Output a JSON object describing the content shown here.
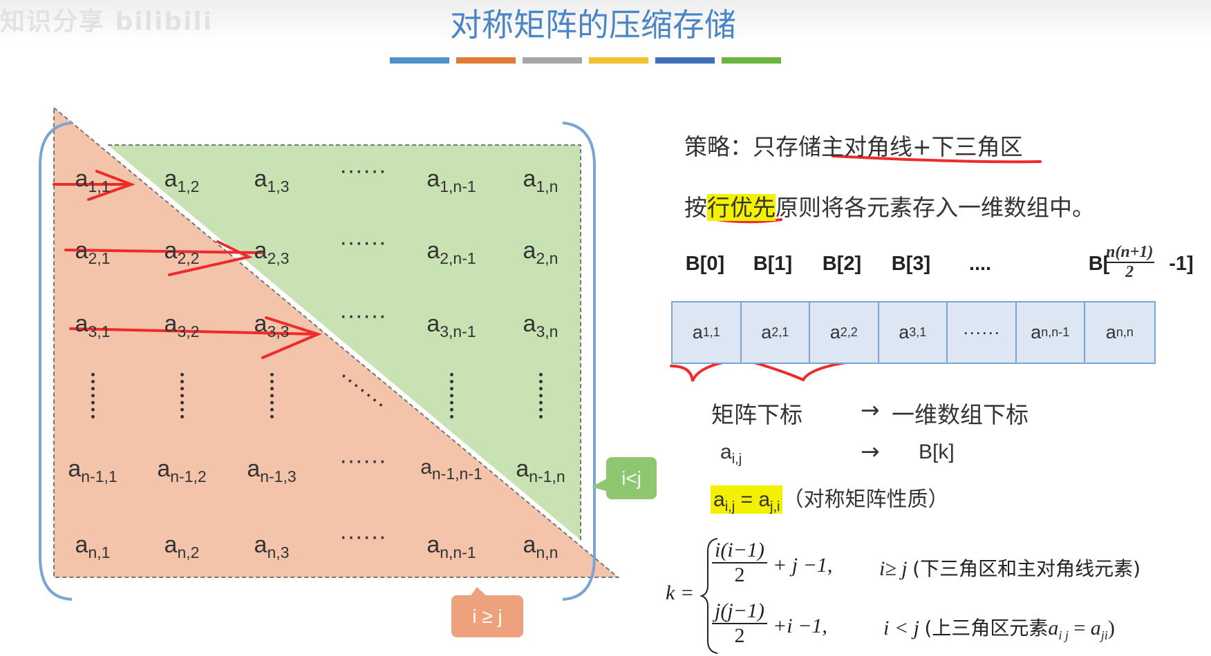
{
  "watermark": "知识分享 bilibili",
  "title": "对称矩阵的压缩存储",
  "colors": {
    "title": "#4a86c6",
    "upper": "#c9e2b3",
    "lower": "#f3c3aa",
    "bars": [
      "#4e90c8",
      "#e07a32",
      "#a5a5a5",
      "#f2c12e",
      "#3f6fb8",
      "#6cb33f"
    ],
    "annotation": "#ee2a2a",
    "highlight": "#f3f000",
    "bubble_upper": "#8fc770",
    "bubble_lower": "#eea27b"
  },
  "matrix": {
    "rows": [
      [
        "a|1,1",
        "a|1,2",
        "a|1,3",
        "······",
        "a|1,n-1",
        "a|1,n"
      ],
      [
        "a|2,1",
        "a|2,2",
        "a|2,3",
        "······",
        "a|2,n-1",
        "a|2,n"
      ],
      [
        "a|3,1",
        "a|3,2",
        "a|3,3",
        "······",
        "a|3,n-1",
        "a|3,n"
      ],
      [
        "vdots",
        "vdots",
        "vdots",
        "ddots",
        "vdots",
        "vdots"
      ],
      [
        "a|n-1,1",
        "a|n-1,2",
        "a|n-1,3",
        "······",
        "a|n-1,n-1",
        "a|n-1,n"
      ],
      [
        "a|n,1",
        "a|n,2",
        "a|n,3",
        "······",
        "a|n,n-1",
        "a|n,n"
      ]
    ]
  },
  "bubbles": {
    "upper": "i<j",
    "lower": "i ≥ j"
  },
  "strategy": {
    "prefix": "策略：只存储",
    "rest": "主对角线+下三角区"
  },
  "order": {
    "pre": "按",
    "highlight": "行优先",
    "post": "原则将各元素存入一维数组中。"
  },
  "array": {
    "labels": [
      "B[0]",
      "B[1]",
      "B[2]",
      "B[3]",
      "....",
      "B["
    ],
    "last_label": {
      "num": "n(n+1)",
      "den": "2",
      "suffix": "-1]"
    },
    "cells": [
      [
        "a",
        "1,1"
      ],
      [
        "a",
        "2,1"
      ],
      [
        "a",
        "2,2"
      ],
      [
        "a",
        "3,1"
      ],
      [
        "······",
        ""
      ],
      [
        "a",
        "n,n-1"
      ],
      [
        "a",
        "n,n"
      ]
    ]
  },
  "mapping": {
    "left": "矩阵下标",
    "arrow": "→",
    "right": "一维数组下标",
    "a": "a",
    "a_sub": "i,j",
    "b": "B[k]"
  },
  "property": {
    "a1": "a",
    "s1": "i,j",
    "eq": " = ",
    "a2": "a",
    "s2": "j,i",
    "text": "（对称矩阵性质）"
  },
  "formula": {
    "k": "k =",
    "case1": {
      "num": "i(i−1)",
      "den": "2",
      "tail": "+ j −1,",
      "cond": "i≥ j",
      "desc": "(下三角区和主对角线元素)"
    },
    "case2": {
      "num": "j(j−1)",
      "den": "2",
      "tail": "+i −1,",
      "cond": "i < j",
      "desc": "(上三角区元素",
      "a": "a",
      "s1": "i j",
      "eq": " = ",
      "s2": "ji",
      "close": ")"
    }
  }
}
